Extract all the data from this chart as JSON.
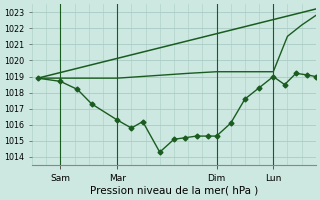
{
  "background_color": "#cce8e0",
  "grid_color": "#aaccc4",
  "line_color": "#1a5c20",
  "title": "Pression niveau de la mer( hPa )",
  "xlim": [
    0,
    10.0
  ],
  "ylim": [
    1013.5,
    1023.5
  ],
  "yticks": [
    1014,
    1015,
    1016,
    1017,
    1018,
    1019,
    1020,
    1021,
    1022,
    1023
  ],
  "xtick_positions": [
    1.0,
    3.0,
    6.5,
    8.5
  ],
  "xtick_labels": [
    "Sam",
    "Mar",
    "Dim",
    "Lun"
  ],
  "vline_positions": [
    1.0,
    3.0,
    6.5,
    8.5
  ],
  "line1_x": [
    0.2,
    1.0,
    1.6,
    2.1,
    3.0,
    3.5,
    3.9,
    4.5,
    5.0,
    5.4,
    5.8,
    6.2,
    6.5,
    7.0,
    7.5,
    8.0,
    8.5,
    8.9,
    9.3,
    9.7,
    10.0
  ],
  "line1_y": [
    1018.9,
    1018.7,
    1018.2,
    1017.3,
    1016.3,
    1015.8,
    1016.2,
    1014.3,
    1015.1,
    1015.2,
    1015.3,
    1015.3,
    1015.3,
    1016.1,
    1017.6,
    1018.3,
    1019.0,
    1018.5,
    1019.2,
    1019.1,
    1019.0
  ],
  "line2_x": [
    0.2,
    3.0,
    5.5,
    6.5,
    8.5,
    9.0,
    9.5,
    10.0
  ],
  "line2_y": [
    1018.9,
    1018.9,
    1019.2,
    1019.3,
    1019.3,
    1021.5,
    1022.2,
    1022.8
  ],
  "line3_x": [
    0.2,
    10.0
  ],
  "line3_y": [
    1018.9,
    1023.2
  ],
  "marker": "D",
  "markersize": 2.5
}
